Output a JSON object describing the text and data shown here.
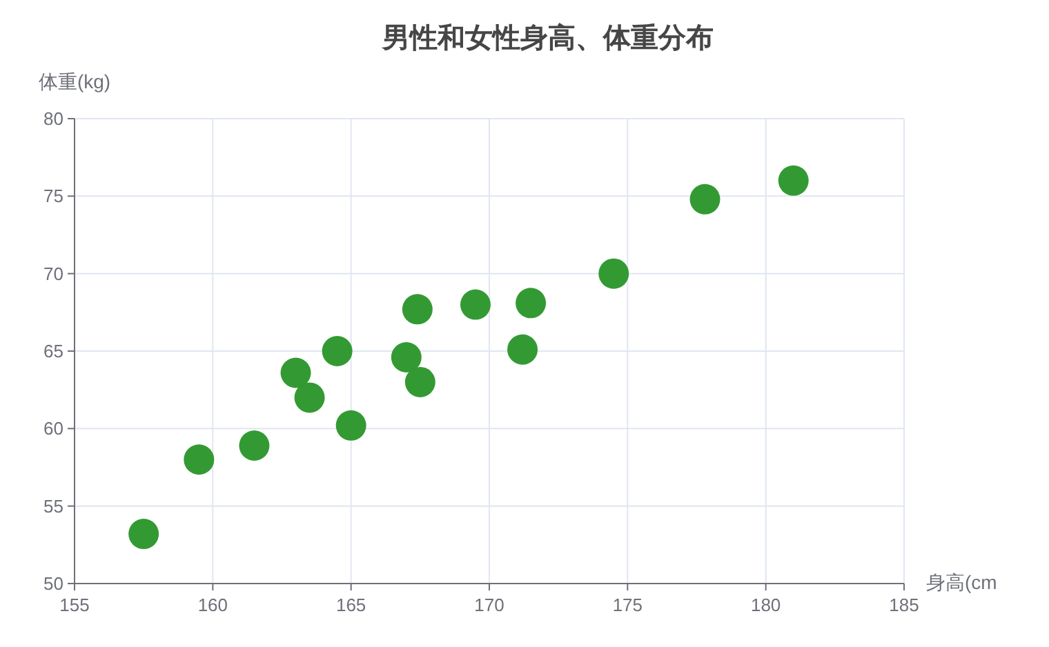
{
  "chart_data": {
    "type": "scatter",
    "title": "男性和女性身高、体重分布",
    "xlabel": "身高(cm",
    "ylabel": "体重(kg)",
    "x": [
      157.5,
      159.5,
      161.5,
      163,
      163.5,
      164.5,
      165,
      167,
      167.4,
      167.5,
      169.5,
      171.2,
      171.5,
      174.5,
      177.8,
      181
    ],
    "series": [
      {
        "color": "#2f982f",
        "values": [
          53.2,
          58,
          58.9,
          63.6,
          62,
          65,
          60.2,
          64.6,
          67.7,
          63,
          68,
          65.1,
          68.1,
          70,
          74.8,
          76
        ]
      }
    ],
    "xlim": [
      155,
      185
    ],
    "xticks": [
      155,
      160,
      165,
      170,
      175,
      180,
      185
    ],
    "ylim": [
      50,
      80
    ],
    "yticks": [
      50,
      55,
      60,
      65,
      70,
      75,
      80
    ],
    "grid": true,
    "marker": "circle"
  }
}
